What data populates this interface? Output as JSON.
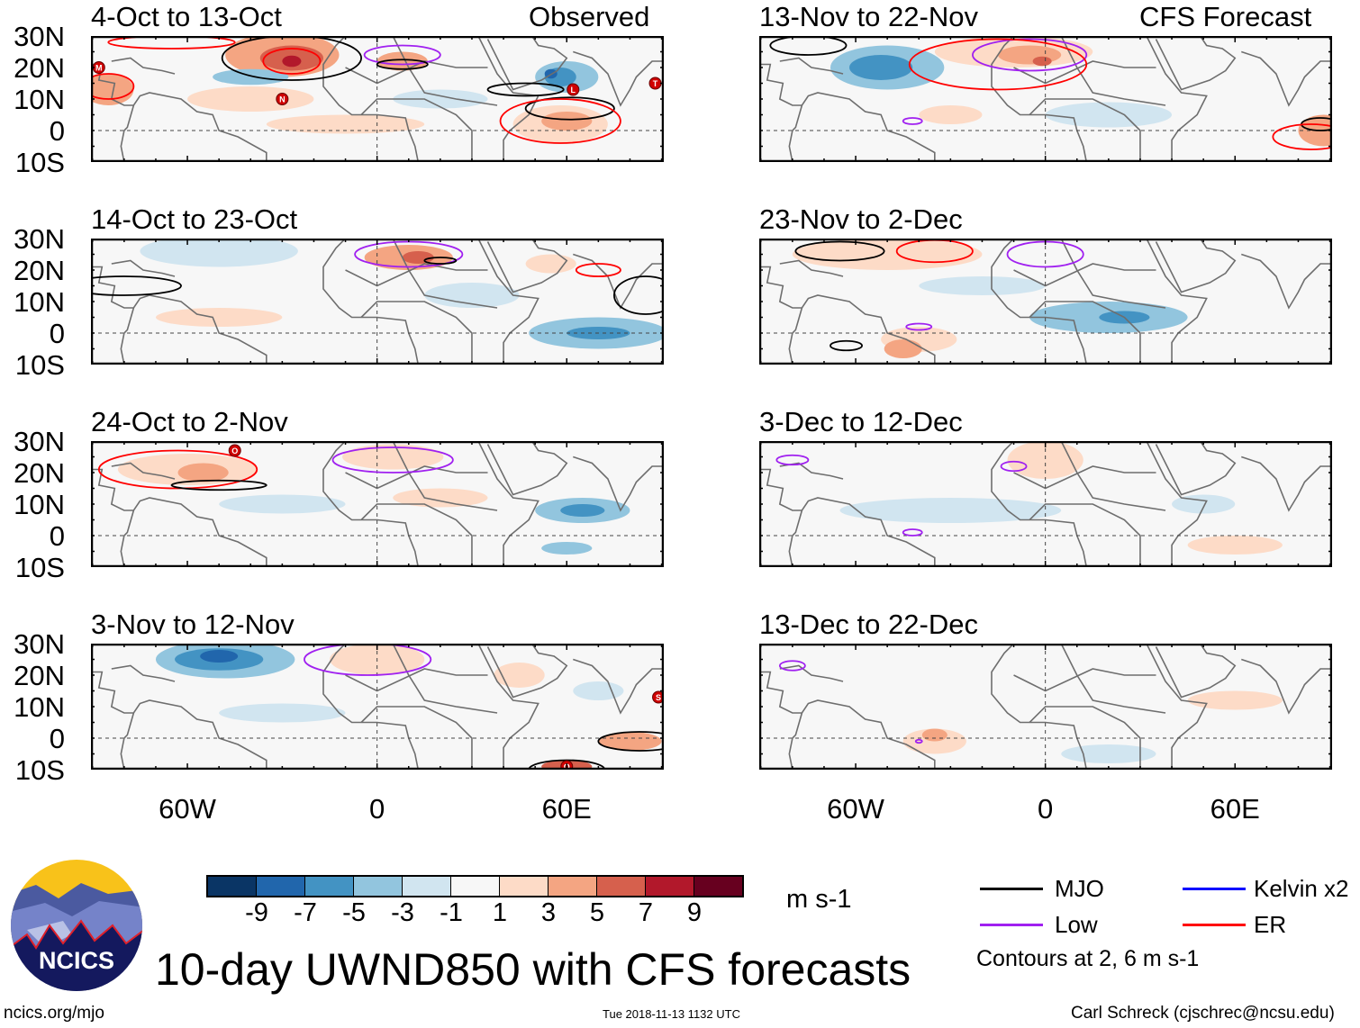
{
  "header": {
    "observed_label": "Observed",
    "forecast_label": "CFS Forecast"
  },
  "panels": {
    "observed": [
      {
        "title": "4-Oct to 13-Oct",
        "storms": [
          "M",
          "N",
          "L",
          "T"
        ]
      },
      {
        "title": "14-Oct to 23-Oct",
        "storms": []
      },
      {
        "title": "24-Oct to 2-Nov",
        "storms": [
          "O"
        ]
      },
      {
        "title": "3-Nov to 12-Nov",
        "storms": [
          "S",
          "O"
        ]
      }
    ],
    "forecast": [
      {
        "title": "13-Nov to 22-Nov"
      },
      {
        "title": "23-Nov to 2-Dec"
      },
      {
        "title": "3-Dec to 12-Dec"
      },
      {
        "title": "13-Dec to 22-Dec"
      }
    ]
  },
  "axes": {
    "lat_labels": [
      "30N",
      "20N",
      "10N",
      "0",
      "10S"
    ],
    "lon_labels": [
      "60W",
      "0",
      "60E"
    ]
  },
  "colorbar": {
    "colors": [
      "#0a3565",
      "#2166ac",
      "#4393c3",
      "#92c5de",
      "#d1e5f0",
      "#f7f7f7",
      "#fddbc7",
      "#f4a582",
      "#d6604d",
      "#b2182b",
      "#67001f"
    ],
    "labels": [
      "-9",
      "-7",
      "-5",
      "-3",
      "-1",
      "1",
      "3",
      "5",
      "7",
      "9"
    ],
    "units": "m s-1"
  },
  "legend": {
    "items": [
      {
        "label": "MJO",
        "color": "#000000"
      },
      {
        "label": "Kelvin x2",
        "color": "#0000ff"
      },
      {
        "label": "Low",
        "color": "#a020f0"
      },
      {
        "label": "ER",
        "color": "#ff0000"
      }
    ],
    "note": "Contours at 2, 6 m s-1"
  },
  "logo": {
    "text": "NCICS"
  },
  "footer": {
    "title": "10-day UWND850 with CFS forecasts",
    "url": "ncics.org/mjo",
    "timestamp": "Tue 2018-11-13 1132 UTC",
    "author": "Carl Schreck (cjschrec@ncsu.edu)"
  }
}
